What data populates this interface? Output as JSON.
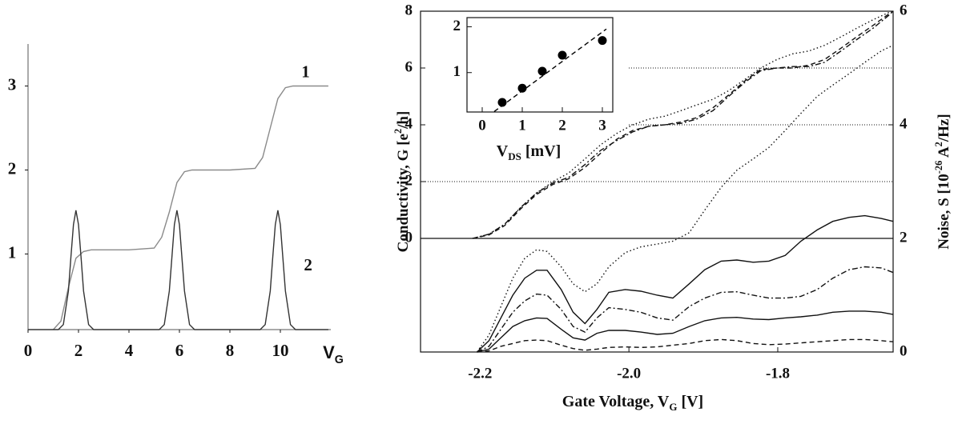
{
  "chart_data": [
    {
      "type": "line",
      "xlim": [
        0,
        12
      ],
      "ylim": [
        0.1,
        3.5
      ],
      "xticks": [
        0,
        2,
        4,
        6,
        8,
        10
      ],
      "yticks": [
        1,
        2,
        3
      ],
      "xlabel": [
        {
          "text": "V"
        },
        {
          "text": "G",
          "sub": true
        }
      ],
      "series": [
        {
          "color": "#8a8a8a",
          "dash": "solid",
          "x": [
            1.0,
            1.3,
            1.6,
            1.9,
            2.2,
            2.5,
            3,
            4,
            5,
            5.3,
            5.6,
            5.9,
            6.2,
            6.5,
            7,
            8,
            9,
            9.3,
            9.6,
            9.9,
            10.2,
            10.5,
            11,
            11.9
          ],
          "values": [
            0.1,
            0.2,
            0.6,
            0.95,
            1.03,
            1.05,
            1.05,
            1.05,
            1.07,
            1.2,
            1.5,
            1.85,
            1.98,
            2.0,
            2.0,
            2.0,
            2.02,
            2.15,
            2.5,
            2.85,
            2.98,
            3.0,
            3.0,
            3.0
          ]
        },
        {
          "color": "#333333",
          "dash": "solid",
          "x": [
            0,
            1.2,
            1.4,
            1.6,
            1.7,
            1.8,
            1.9,
            2.0,
            2.1,
            2.2,
            2.4,
            2.6,
            5.2,
            5.4,
            5.6,
            5.7,
            5.8,
            5.9,
            6.0,
            6.1,
            6.2,
            6.4,
            6.6,
            9.2,
            9.4,
            9.6,
            9.7,
            9.8,
            9.9,
            10.0,
            10.1,
            10.2,
            10.4,
            10.6,
            11.9
          ],
          "values": [
            0.1,
            0.1,
            0.16,
            0.56,
            0.96,
            1.35,
            1.52,
            1.35,
            0.96,
            0.56,
            0.16,
            0.1,
            0.1,
            0.16,
            0.56,
            0.96,
            1.35,
            1.52,
            1.35,
            0.96,
            0.56,
            0.16,
            0.1,
            0.1,
            0.16,
            0.56,
            0.96,
            1.35,
            1.52,
            1.35,
            0.96,
            0.56,
            0.16,
            0.1,
            0.1
          ]
        }
      ],
      "annotations": [
        {
          "text": "1",
          "x": 11.0,
          "y": 3.15
        },
        {
          "text": "2",
          "x": 11.1,
          "y": 0.85
        }
      ]
    },
    {
      "type": "line",
      "xlim": [
        -2.28,
        -1.645
      ],
      "ylim": [
        -4,
        8
      ],
      "y2lim": [
        0,
        6
      ],
      "xticks": [
        -2.2,
        {
          "value": -2.0,
          "label": "-2.0"
        },
        -1.8
      ],
      "yticks": [
        0,
        2,
        4,
        6,
        8
      ],
      "y2ticks": [
        0,
        2,
        4,
        6
      ],
      "xlabel": [
        {
          "text": "Gate Voltage, V"
        },
        {
          "text": "G",
          "sub": true
        },
        {
          "text": " [V]"
        }
      ],
      "ylabel": [
        {
          "text": "Conductivity, G [e"
        },
        {
          "text": "2",
          "sup": true
        },
        {
          "text": "/h]"
        }
      ],
      "y2label": [
        {
          "text": "Noise, S [10"
        },
        {
          "text": "-26",
          "sup": true
        },
        {
          "text": " A"
        },
        {
          "text": "2",
          "sup": true
        },
        {
          "text": "/Hz]"
        }
      ],
      "series": [
        {
          "color": "#111111",
          "dash": "dashdot",
          "x": [
            -2.21,
            -2.188,
            -2.167,
            -2.145,
            -2.124,
            -2.102,
            -2.081,
            -2.059,
            -2.038,
            -2.016,
            -1.995,
            -1.973,
            -1.952,
            -1.93,
            -1.909,
            -1.887,
            -1.866,
            -1.844,
            -1.823,
            -1.801,
            -1.78,
            -1.758,
            -1.737,
            -1.715,
            -1.694,
            -1.672,
            -1.651,
            -1.645
          ],
          "values": [
            0,
            0.15,
            0.5,
            1.1,
            1.6,
            1.95,
            2.15,
            2.6,
            3.1,
            3.45,
            3.75,
            3.95,
            4.0,
            4.05,
            4.2,
            4.5,
            5.0,
            5.5,
            5.9,
            6.0,
            6.05,
            6.05,
            6.2,
            6.6,
            7.0,
            7.4,
            7.85,
            8.0
          ]
        },
        {
          "color": "#111111",
          "dash": "dashed",
          "x": [
            -2.21,
            -2.188,
            -2.167,
            -2.145,
            -2.124,
            -2.102,
            -2.081,
            -2.059,
            -2.038,
            -2.016,
            -1.995,
            -1.973,
            -1.952,
            -1.93,
            -1.909,
            -1.887,
            -1.866,
            -1.844,
            -1.823,
            -1.801,
            -1.78,
            -1.758,
            -1.737,
            -1.715,
            -1.694,
            -1.672,
            -1.651,
            -1.645
          ],
          "values": [
            0,
            0.12,
            0.45,
            1.05,
            1.55,
            1.9,
            2.1,
            2.5,
            3.0,
            3.5,
            3.8,
            3.95,
            4.0,
            4.1,
            4.25,
            4.6,
            5.05,
            5.55,
            5.95,
            6.0,
            6.0,
            6.1,
            6.3,
            6.7,
            7.1,
            7.5,
            7.9,
            8.0
          ]
        },
        {
          "color": "#111111",
          "dash": "dotted",
          "x": [
            -2.21,
            -2.188,
            -2.167,
            -2.145,
            -2.124,
            -2.102,
            -2.081,
            -2.059,
            -2.038,
            -2.016,
            -1.995,
            -1.973,
            -1.952,
            -1.93,
            -1.909,
            -1.887,
            -1.866,
            -1.844,
            -1.823,
            -1.801,
            -1.78,
            -1.758,
            -1.737,
            -1.715,
            -1.694,
            -1.672,
            -1.651,
            -1.645
          ],
          "values": [
            0,
            0.15,
            0.5,
            1.1,
            1.6,
            2.0,
            2.3,
            2.8,
            3.3,
            3.7,
            4.0,
            4.2,
            4.3,
            4.5,
            4.7,
            4.9,
            5.2,
            5.6,
            6.0,
            6.3,
            6.5,
            6.6,
            6.8,
            7.1,
            7.4,
            7.7,
            7.95,
            8.0
          ]
        },
        {
          "color": "#111111",
          "dash": "dotted",
          "axis": "y2",
          "x": [
            -2.204,
            -2.188,
            -2.172,
            -2.156,
            -2.14,
            -2.124,
            -2.11,
            -2.091,
            -2.075,
            -2.059,
            -2.043,
            -2.027,
            -2.005,
            -1.984,
            -1.962,
            -1.941,
            -1.919,
            -1.898,
            -1.876,
            -1.855,
            -1.833,
            -1.812,
            -1.79,
            -1.769,
            -1.747,
            -1.726,
            -1.704,
            -1.683,
            -1.661,
            -1.645
          ],
          "values": [
            0,
            0.3,
            0.8,
            1.3,
            1.65,
            1.8,
            1.77,
            1.5,
            1.2,
            1.06,
            1.2,
            1.5,
            1.75,
            1.85,
            1.9,
            1.95,
            2.1,
            2.5,
            2.9,
            3.2,
            3.4,
            3.6,
            3.9,
            4.2,
            4.5,
            4.7,
            4.9,
            5.1,
            5.3,
            5.4
          ]
        },
        {
          "color": "#111111",
          "dash": "solid",
          "axis": "y2",
          "x": [
            -2.204,
            -2.188,
            -2.172,
            -2.156,
            -2.14,
            -2.124,
            -2.11,
            -2.091,
            -2.075,
            -2.059,
            -2.043,
            -2.027,
            -2.005,
            -1.984,
            -1.962,
            -1.941,
            -1.919,
            -1.898,
            -1.876,
            -1.855,
            -1.833,
            -1.812,
            -1.79,
            -1.769,
            -1.747,
            -1.726,
            -1.704,
            -1.683,
            -1.661,
            -1.645
          ],
          "values": [
            0,
            0.2,
            0.6,
            1.0,
            1.3,
            1.44,
            1.44,
            1.1,
            0.7,
            0.5,
            0.75,
            1.05,
            1.1,
            1.07,
            1.0,
            0.95,
            1.2,
            1.45,
            1.6,
            1.62,
            1.58,
            1.6,
            1.7,
            1.95,
            2.15,
            2.3,
            2.37,
            2.4,
            2.35,
            2.3
          ]
        },
        {
          "color": "#111111",
          "dash": "dashdot",
          "axis": "y2",
          "x": [
            -2.204,
            -2.188,
            -2.172,
            -2.156,
            -2.14,
            -2.124,
            -2.11,
            -2.091,
            -2.075,
            -2.059,
            -2.043,
            -2.027,
            -2.005,
            -1.984,
            -1.962,
            -1.941,
            -1.919,
            -1.898,
            -1.876,
            -1.855,
            -1.833,
            -1.812,
            -1.79,
            -1.769,
            -1.747,
            -1.726,
            -1.704,
            -1.683,
            -1.661,
            -1.645
          ],
          "values": [
            0,
            0.1,
            0.4,
            0.7,
            0.9,
            1.02,
            1.0,
            0.75,
            0.45,
            0.35,
            0.6,
            0.78,
            0.75,
            0.7,
            0.6,
            0.56,
            0.8,
            0.95,
            1.05,
            1.06,
            1.0,
            0.95,
            0.95,
            0.98,
            1.1,
            1.3,
            1.45,
            1.5,
            1.48,
            1.4
          ]
        },
        {
          "color": "#111111",
          "dash": "solid",
          "axis": "y2",
          "x": [
            -2.204,
            -2.188,
            -2.172,
            -2.156,
            -2.14,
            -2.124,
            -2.11,
            -2.091,
            -2.075,
            -2.059,
            -2.043,
            -2.027,
            -2.005,
            -1.984,
            -1.962,
            -1.941,
            -1.919,
            -1.898,
            -1.876,
            -1.855,
            -1.833,
            -1.812,
            -1.79,
            -1.769,
            -1.747,
            -1.726,
            -1.704,
            -1.683,
            -1.661,
            -1.645
          ],
          "values": [
            0,
            0.05,
            0.25,
            0.45,
            0.55,
            0.6,
            0.59,
            0.4,
            0.25,
            0.21,
            0.33,
            0.38,
            0.38,
            0.35,
            0.31,
            0.33,
            0.45,
            0.55,
            0.6,
            0.61,
            0.58,
            0.57,
            0.6,
            0.62,
            0.65,
            0.7,
            0.72,
            0.72,
            0.7,
            0.66
          ]
        },
        {
          "color": "#111111",
          "dash": "dashed",
          "axis": "y2",
          "x": [
            -2.204,
            -2.188,
            -2.172,
            -2.156,
            -2.14,
            -2.124,
            -2.11,
            -2.091,
            -2.075,
            -2.059,
            -2.043,
            -2.027,
            -2.005,
            -1.984,
            -1.962,
            -1.941,
            -1.919,
            -1.898,
            -1.876,
            -1.855,
            -1.833,
            -1.812,
            -1.79,
            -1.769,
            -1.747,
            -1.726,
            -1.704,
            -1.683,
            -1.661,
            -1.645
          ],
          "values": [
            0,
            0.02,
            0.1,
            0.15,
            0.2,
            0.21,
            0.2,
            0.12,
            0.06,
            0.03,
            0.05,
            0.08,
            0.09,
            0.08,
            0.09,
            0.12,
            0.15,
            0.2,
            0.22,
            0.2,
            0.15,
            0.13,
            0.14,
            0.16,
            0.18,
            0.2,
            0.22,
            0.22,
            0.2,
            0.18
          ]
        }
      ]
    },
    {
      "type": "scatter",
      "xlim": [
        -0.38,
        3.26
      ],
      "ylim": [
        0.14,
        2.2
      ],
      "xticks": [
        0,
        1,
        2,
        3
      ],
      "yticks": [
        1,
        2
      ],
      "xlabel": [
        {
          "text": "V"
        },
        {
          "text": "DS",
          "sub": true
        },
        {
          "text": " [mV]"
        }
      ],
      "series": [
        {
          "color": "#000000",
          "x": [
            0.5,
            1,
            1.5,
            2,
            3
          ],
          "values": [
            0.35,
            0.66,
            1.03,
            1.38,
            1.7
          ]
        }
      ],
      "fit": {
        "color": "#000000",
        "dash": "dashed",
        "x": [
          0.3,
          3.1
        ],
        "values": [
          0.15,
          1.95
        ]
      }
    }
  ]
}
